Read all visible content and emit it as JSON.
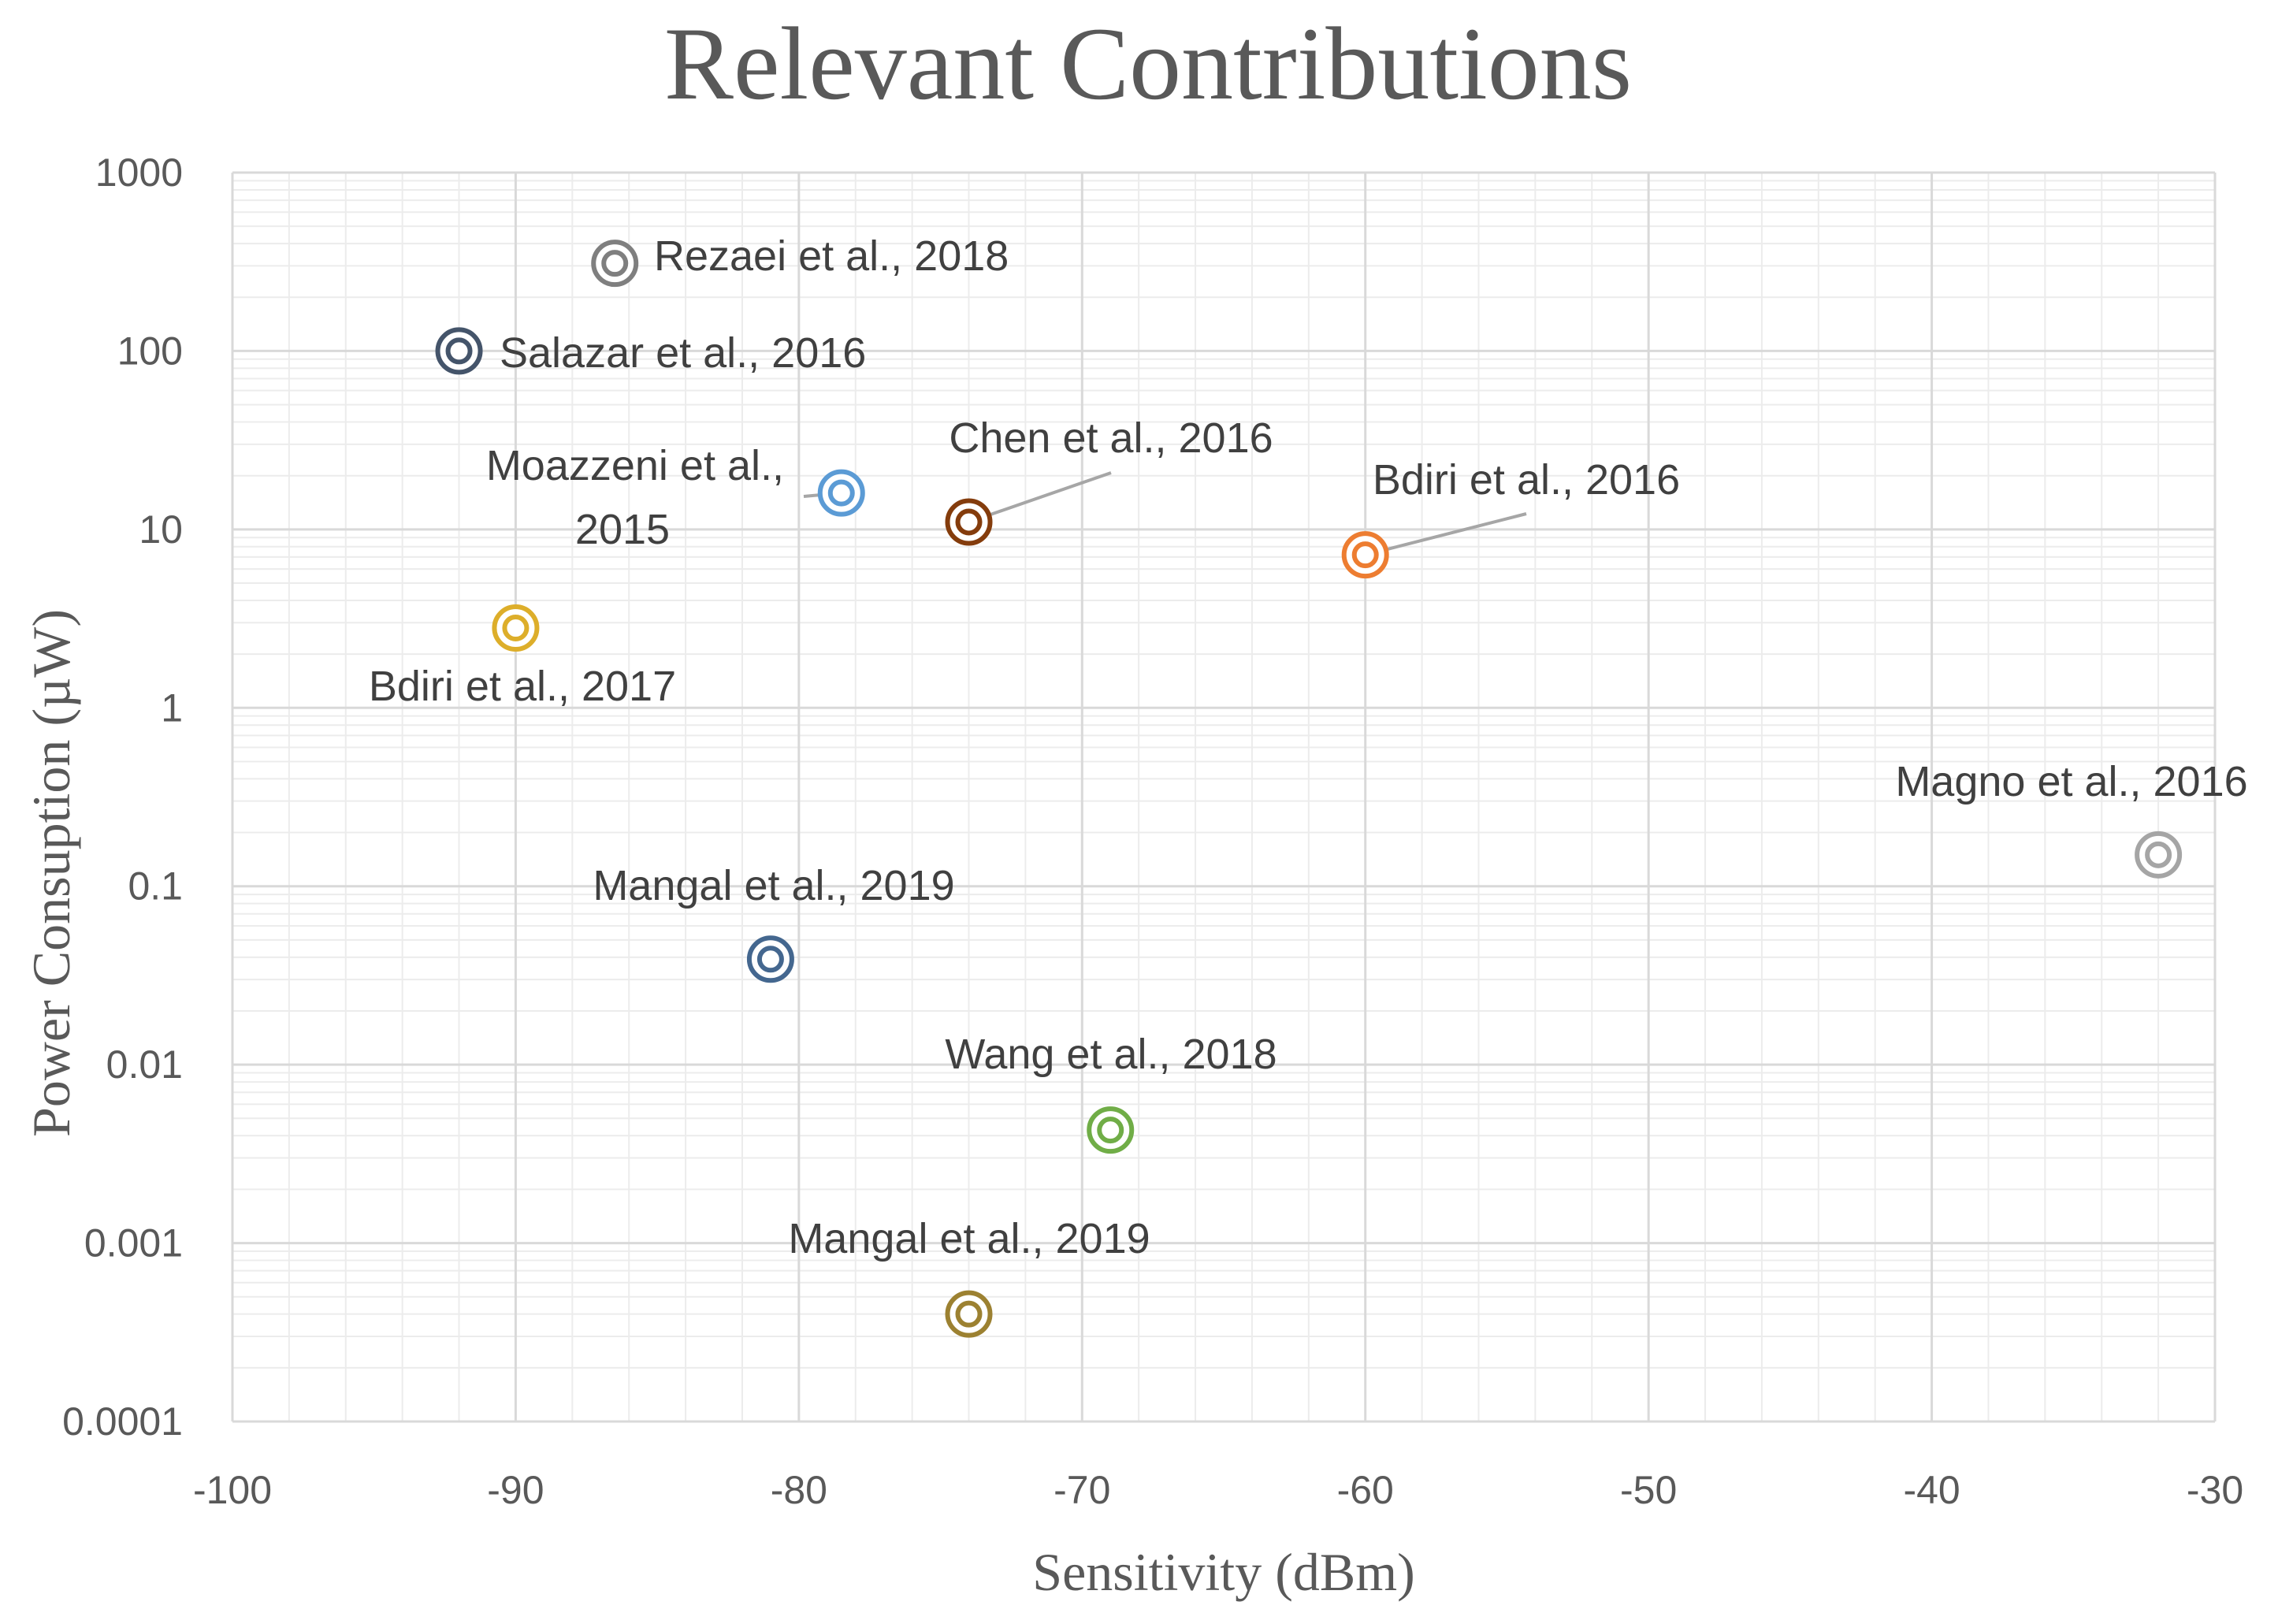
{
  "chart_data": {
    "type": "scatter",
    "title": "Relevant Contributions",
    "xlabel": "Sensitivity (dBm)",
    "ylabel": "Power Consuption (µW)",
    "xlim": [
      -100,
      -30
    ],
    "ylim": [
      0.0001,
      1000
    ],
    "yscale": "log",
    "grid": true,
    "x_ticks": [
      -100,
      -90,
      -80,
      -70,
      -60,
      -50,
      -40,
      -30
    ],
    "x_tick_labels": [
      "-100",
      "-90",
      "-80",
      "-70",
      "-60",
      "-50",
      "-40",
      "-30"
    ],
    "y_ticks": [
      0.0001,
      0.001,
      0.01,
      0.1,
      1,
      10,
      100,
      1000
    ],
    "y_tick_labels": [
      "0.0001",
      "0.001",
      "0.01",
      "0.1",
      "1",
      "10",
      "100",
      "1000"
    ],
    "series": [
      {
        "name": "Rezaei et al., 2018",
        "x": -86.5,
        "y": 310,
        "color": "#7f7f7f"
      },
      {
        "name": "Salazar et al., 2016",
        "x": -92,
        "y": 100,
        "color": "#44546a"
      },
      {
        "name": "Moazzeni et al., 2015",
        "x": -78.5,
        "y": 16,
        "color": "#5b9bd5"
      },
      {
        "name": "Chen et al., 2016",
        "x": -74,
        "y": 11,
        "color": "#843c0c"
      },
      {
        "name": "Bdiri et al., 2016",
        "x": -60,
        "y": 7.2,
        "color": "#ed7d31"
      },
      {
        "name": "Bdiri et al., 2017",
        "x": -90,
        "y": 2.8,
        "color": "#ddae2a"
      },
      {
        "name": "Magno et al., 2016",
        "x": -32,
        "y": 0.15,
        "color": "#a5a5a5"
      },
      {
        "name": "Mangal et al., 2019",
        "x": -81,
        "y": 0.039,
        "color": "#44678f"
      },
      {
        "name": "Wang et al., 2018",
        "x": -69,
        "y": 0.0043,
        "color": "#70ad47"
      },
      {
        "name": "Mangal et al., 2019",
        "x": -74,
        "y": 0.0004,
        "color": "#9c8131"
      }
    ]
  }
}
